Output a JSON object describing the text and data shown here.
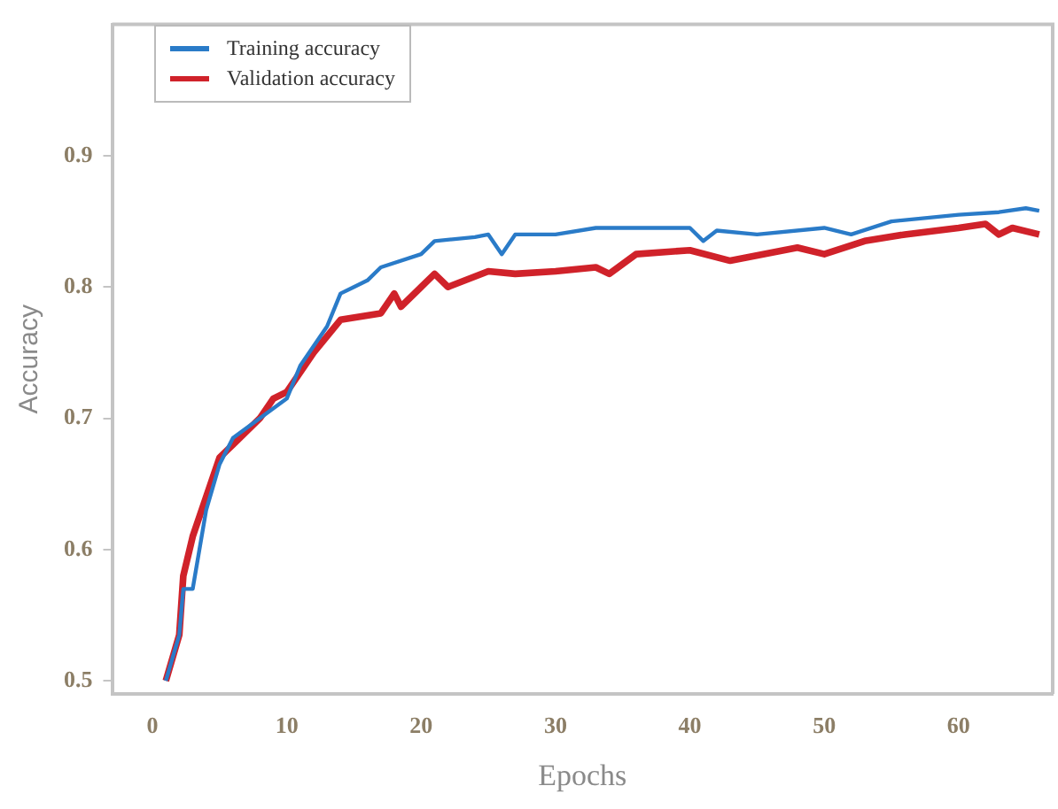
{
  "chart_data": {
    "type": "line",
    "xlabel": "Epochs",
    "ylabel": "Accuracy",
    "xlim": [
      -3,
      67
    ],
    "xticks": [
      0,
      10,
      20,
      30,
      40,
      50,
      60
    ],
    "ylim": [
      0.49,
      1.0
    ],
    "yticks": [
      0.5,
      0.6,
      0.7,
      0.8,
      0.9
    ],
    "grid": false,
    "legend": "top left",
    "marker": "none",
    "line_style": "solid",
    "series": [
      {
        "name": "Training accuracy",
        "color": "#2a7bc8",
        "x": [
          1,
          2,
          2.3,
          3,
          3.5,
          4,
          5,
          6,
          8,
          10,
          11,
          12,
          13,
          14,
          15,
          16,
          17,
          20,
          21,
          24,
          25,
          26,
          27,
          30,
          33,
          40,
          41,
          42,
          45,
          50,
          52,
          55,
          60,
          63,
          65,
          66
        ],
        "values": [
          0.5,
          0.535,
          0.57,
          0.57,
          0.6,
          0.63,
          0.665,
          0.685,
          0.7,
          0.715,
          0.74,
          0.755,
          0.77,
          0.795,
          0.8,
          0.805,
          0.815,
          0.825,
          0.835,
          0.838,
          0.84,
          0.825,
          0.84,
          0.84,
          0.845,
          0.845,
          0.835,
          0.843,
          0.84,
          0.845,
          0.84,
          0.85,
          0.855,
          0.857,
          0.86,
          0.858
        ]
      },
      {
        "name": "Validation accuracy",
        "color": "#d0222a",
        "x": [
          1,
          2,
          2.3,
          3,
          4,
          5,
          6,
          8,
          9,
          10,
          12,
          14,
          17,
          18,
          18.5,
          20,
          21,
          22,
          25,
          27,
          30,
          33,
          34,
          36,
          40,
          43,
          48,
          50,
          53,
          56,
          60,
          62,
          63,
          64,
          66
        ],
        "values": [
          0.5,
          0.535,
          0.58,
          0.61,
          0.64,
          0.67,
          0.68,
          0.7,
          0.715,
          0.72,
          0.75,
          0.775,
          0.78,
          0.795,
          0.785,
          0.8,
          0.81,
          0.8,
          0.812,
          0.81,
          0.812,
          0.815,
          0.81,
          0.825,
          0.828,
          0.82,
          0.83,
          0.825,
          0.835,
          0.84,
          0.845,
          0.848,
          0.84,
          0.845,
          0.84
        ]
      }
    ]
  }
}
